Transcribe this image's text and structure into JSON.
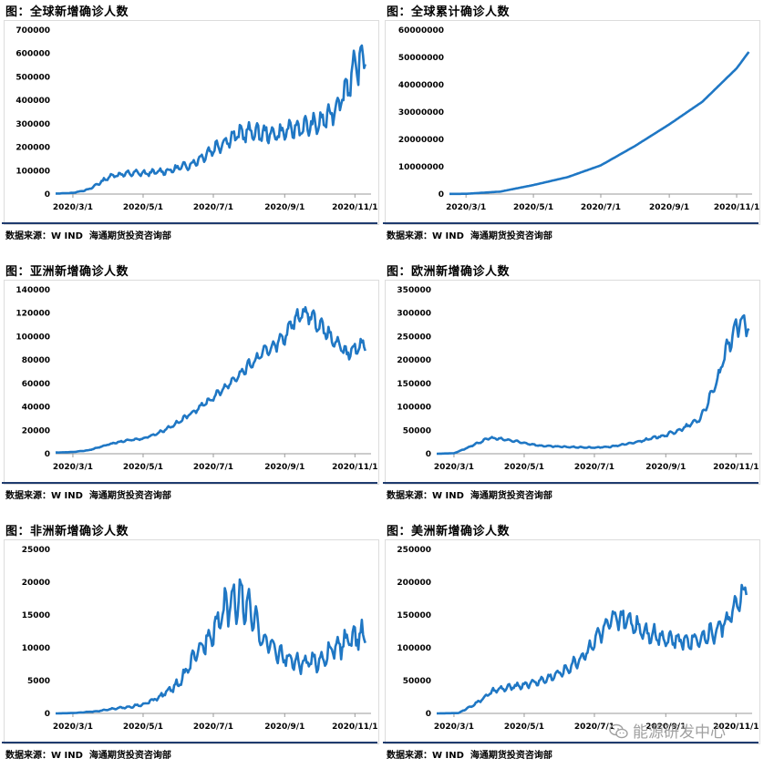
{
  "source_label": "数据来源：W IND  海通期货投资咨询部",
  "watermark": {
    "text": "能源研发中心",
    "icon": "wechat-icon"
  },
  "colors": {
    "line": "#1f77c4",
    "axis": "#9a9a9a",
    "rule": "#1f3b6e"
  },
  "chart_data": [
    {
      "type": "line",
      "title": "图：全球新增确诊人数",
      "x_tick_labels": [
        "2020/3/1",
        "2020/5/1",
        "2020/7/1",
        "2020/9/1",
        "2020/11/1"
      ],
      "x_ticks": [
        "2020-03-01",
        "2020-05-01",
        "2020-07-01",
        "2020-09-01",
        "2020-11-01"
      ],
      "xlim": [
        "2020-02-15",
        "2020-11-15"
      ],
      "y_tick_labels": [
        "0",
        "100000",
        "200000",
        "300000",
        "400000",
        "500000",
        "600000",
        "700000"
      ],
      "ylim": [
        0,
        700000
      ],
      "series": [
        {
          "points": [
            [
              "2020-02-15",
              2000
            ],
            [
              "2020-03-01",
              5000
            ],
            [
              "2020-03-15",
              20000
            ],
            [
              "2020-03-25",
              50000
            ],
            [
              "2020-04-04",
              80000
            ],
            [
              "2020-04-14",
              85000
            ],
            [
              "2020-04-24",
              90000
            ],
            [
              "2020-05-04",
              88000
            ],
            [
              "2020-05-14",
              95000
            ],
            [
              "2020-05-24",
              100000
            ],
            [
              "2020-06-03",
              115000
            ],
            [
              "2020-06-13",
              130000
            ],
            [
              "2020-06-23",
              165000
            ],
            [
              "2020-07-03",
              200000
            ],
            [
              "2020-07-13",
              230000
            ],
            [
              "2020-07-23",
              255000
            ],
            [
              "2020-08-02",
              265000
            ],
            [
              "2020-08-12",
              260000
            ],
            [
              "2020-08-22",
              255000
            ],
            [
              "2020-09-01",
              265000
            ],
            [
              "2020-09-11",
              280000
            ],
            [
              "2020-09-21",
              290000
            ],
            [
              "2020-10-01",
              300000
            ],
            [
              "2020-10-11",
              340000
            ],
            [
              "2020-10-21",
              420000
            ],
            [
              "2020-10-31",
              520000
            ],
            [
              "2020-11-10",
              600000
            ]
          ]
        }
      ]
    },
    {
      "type": "line",
      "title": "图：全球累计确诊人数",
      "x_tick_labels": [
        "2020/3/1",
        "2020/5/1",
        "2020/7/1",
        "2020/9/1",
        "2020/11/1"
      ],
      "x_ticks": [
        "2020-03-01",
        "2020-05-01",
        "2020-07-01",
        "2020-09-01",
        "2020-11-01"
      ],
      "xlim": [
        "2020-02-15",
        "2020-11-15"
      ],
      "y_tick_labels": [
        "0",
        "10000000",
        "20000000",
        "30000000",
        "40000000",
        "50000000",
        "60000000"
      ],
      "ylim": [
        0,
        60000000
      ],
      "series": [
        {
          "points": [
            [
              "2020-02-15",
              70000
            ],
            [
              "2020-03-01",
              90000
            ],
            [
              "2020-04-01",
              900000
            ],
            [
              "2020-05-01",
              3300000
            ],
            [
              "2020-06-01",
              6200000
            ],
            [
              "2020-07-01",
              10500000
            ],
            [
              "2020-08-01",
              17600000
            ],
            [
              "2020-09-01",
              25500000
            ],
            [
              "2020-10-01",
              33800000
            ],
            [
              "2020-11-01",
              46000000
            ],
            [
              "2020-11-12",
              52000000
            ]
          ]
        }
      ]
    },
    {
      "type": "line",
      "title": "图：亚洲新增确诊人数",
      "x_tick_labels": [
        "2020/3/1",
        "2020/5/1",
        "2020/7/1",
        "2020/9/1",
        "2020/11/1"
      ],
      "x_ticks": [
        "2020-03-01",
        "2020-05-01",
        "2020-07-01",
        "2020-09-01",
        "2020-11-01"
      ],
      "xlim": [
        "2020-02-15",
        "2020-11-15"
      ],
      "y_tick_labels": [
        "0",
        "20000",
        "40000",
        "60000",
        "80000",
        "100000",
        "120000",
        "140000"
      ],
      "ylim": [
        0,
        140000
      ],
      "series": [
        {
          "points": [
            [
              "2020-02-15",
              1000
            ],
            [
              "2020-03-01",
              1500
            ],
            [
              "2020-03-15",
              3000
            ],
            [
              "2020-04-01",
              8000
            ],
            [
              "2020-04-15",
              11000
            ],
            [
              "2020-05-01",
              13000
            ],
            [
              "2020-05-15",
              18000
            ],
            [
              "2020-06-01",
              27000
            ],
            [
              "2020-06-15",
              37000
            ],
            [
              "2020-07-01",
              48000
            ],
            [
              "2020-07-15",
              60000
            ],
            [
              "2020-08-01",
              75000
            ],
            [
              "2020-08-15",
              87000
            ],
            [
              "2020-09-01",
              100000
            ],
            [
              "2020-09-10",
              115000
            ],
            [
              "2020-09-20",
              122000
            ],
            [
              "2020-10-01",
              110000
            ],
            [
              "2020-10-15",
              95000
            ],
            [
              "2020-10-25",
              85000
            ],
            [
              "2020-11-10",
              95000
            ]
          ]
        }
      ]
    },
    {
      "type": "line",
      "title": "图：欧洲新增确诊人数",
      "x_tick_labels": [
        "2020/3/1",
        "2020/5/1",
        "2020/7/1",
        "2020/9/1",
        "2020/11/1"
      ],
      "x_ticks": [
        "2020-03-01",
        "2020-05-01",
        "2020-07-01",
        "2020-09-01",
        "2020-11-01"
      ],
      "xlim": [
        "2020-02-15",
        "2020-11-15"
      ],
      "y_tick_labels": [
        "0",
        "50000",
        "100000",
        "150000",
        "200000",
        "250000",
        "300000",
        "350000"
      ],
      "ylim": [
        0,
        350000
      ],
      "series": [
        {
          "points": [
            [
              "2020-02-15",
              0
            ],
            [
              "2020-03-01",
              1000
            ],
            [
              "2020-03-15",
              15000
            ],
            [
              "2020-04-01",
              34000
            ],
            [
              "2020-04-15",
              30000
            ],
            [
              "2020-05-01",
              23000
            ],
            [
              "2020-05-15",
              17000
            ],
            [
              "2020-06-01",
              15000
            ],
            [
              "2020-06-15",
              14000
            ],
            [
              "2020-07-01",
              13000
            ],
            [
              "2020-07-15",
              15000
            ],
            [
              "2020-08-01",
              22000
            ],
            [
              "2020-08-15",
              30000
            ],
            [
              "2020-09-01",
              40000
            ],
            [
              "2020-09-15",
              52000
            ],
            [
              "2020-10-01",
              75000
            ],
            [
              "2020-10-15",
              150000
            ],
            [
              "2020-10-25",
              230000
            ],
            [
              "2020-11-01",
              270000
            ],
            [
              "2020-11-08",
              280000
            ],
            [
              "2020-11-12",
              265000
            ]
          ]
        }
      ]
    },
    {
      "type": "line",
      "title": "图：非洲新增确诊人数",
      "x_tick_labels": [
        "2020/3/1",
        "2020/5/1",
        "2020/7/1",
        "2020/9/1",
        "2020/11/1"
      ],
      "x_ticks": [
        "2020-03-01",
        "2020-05-01",
        "2020-07-01",
        "2020-09-01",
        "2020-11-01"
      ],
      "xlim": [
        "2020-02-15",
        "2020-11-15"
      ],
      "y_tick_labels": [
        "0",
        "5000",
        "10000",
        "15000",
        "20000",
        "25000"
      ],
      "ylim": [
        0,
        25000
      ],
      "series": [
        {
          "points": [
            [
              "2020-02-15",
              0
            ],
            [
              "2020-03-01",
              50
            ],
            [
              "2020-03-20",
              300
            ],
            [
              "2020-04-10",
              800
            ],
            [
              "2020-05-01",
              1300
            ],
            [
              "2020-05-15",
              2500
            ],
            [
              "2020-06-01",
              4500
            ],
            [
              "2020-06-15",
              8500
            ],
            [
              "2020-07-01",
              13000
            ],
            [
              "2020-07-15",
              17000
            ],
            [
              "2020-07-25",
              17500
            ],
            [
              "2020-08-05",
              14500
            ],
            [
              "2020-08-15",
              11000
            ],
            [
              "2020-09-01",
              8500
            ],
            [
              "2020-09-15",
              7500
            ],
            [
              "2020-10-01",
              8000
            ],
            [
              "2020-10-15",
              10000
            ],
            [
              "2020-11-01",
              11500
            ],
            [
              "2020-11-10",
              12500
            ]
          ]
        }
      ]
    },
    {
      "type": "line",
      "title": "图：美洲新增确诊人数",
      "x_tick_labels": [
        "2020/3/1",
        "2020/5/1",
        "2020/7/1",
        "2020/9/1",
        "2020/11/1"
      ],
      "x_ticks": [
        "2020-03-01",
        "2020-05-01",
        "2020-07-01",
        "2020-09-01",
        "2020-11-01"
      ],
      "xlim": [
        "2020-02-15",
        "2020-11-15"
      ],
      "y_tick_labels": [
        "0",
        "50000",
        "100000",
        "150000",
        "200000",
        "250000"
      ],
      "ylim": [
        0,
        250000
      ],
      "series": [
        {
          "points": [
            [
              "2020-02-15",
              0
            ],
            [
              "2020-03-05",
              500
            ],
            [
              "2020-03-20",
              15000
            ],
            [
              "2020-04-05",
              35000
            ],
            [
              "2020-04-20",
              40000
            ],
            [
              "2020-05-05",
              45000
            ],
            [
              "2020-05-20",
              52000
            ],
            [
              "2020-06-05",
              65000
            ],
            [
              "2020-06-20",
              85000
            ],
            [
              "2020-07-05",
              120000
            ],
            [
              "2020-07-20",
              145000
            ],
            [
              "2020-08-01",
              140000
            ],
            [
              "2020-08-15",
              125000
            ],
            [
              "2020-09-01",
              115000
            ],
            [
              "2020-09-15",
              110000
            ],
            [
              "2020-10-01",
              115000
            ],
            [
              "2020-10-15",
              125000
            ],
            [
              "2020-11-01",
              160000
            ],
            [
              "2020-11-10",
              195000
            ]
          ]
        }
      ]
    }
  ]
}
